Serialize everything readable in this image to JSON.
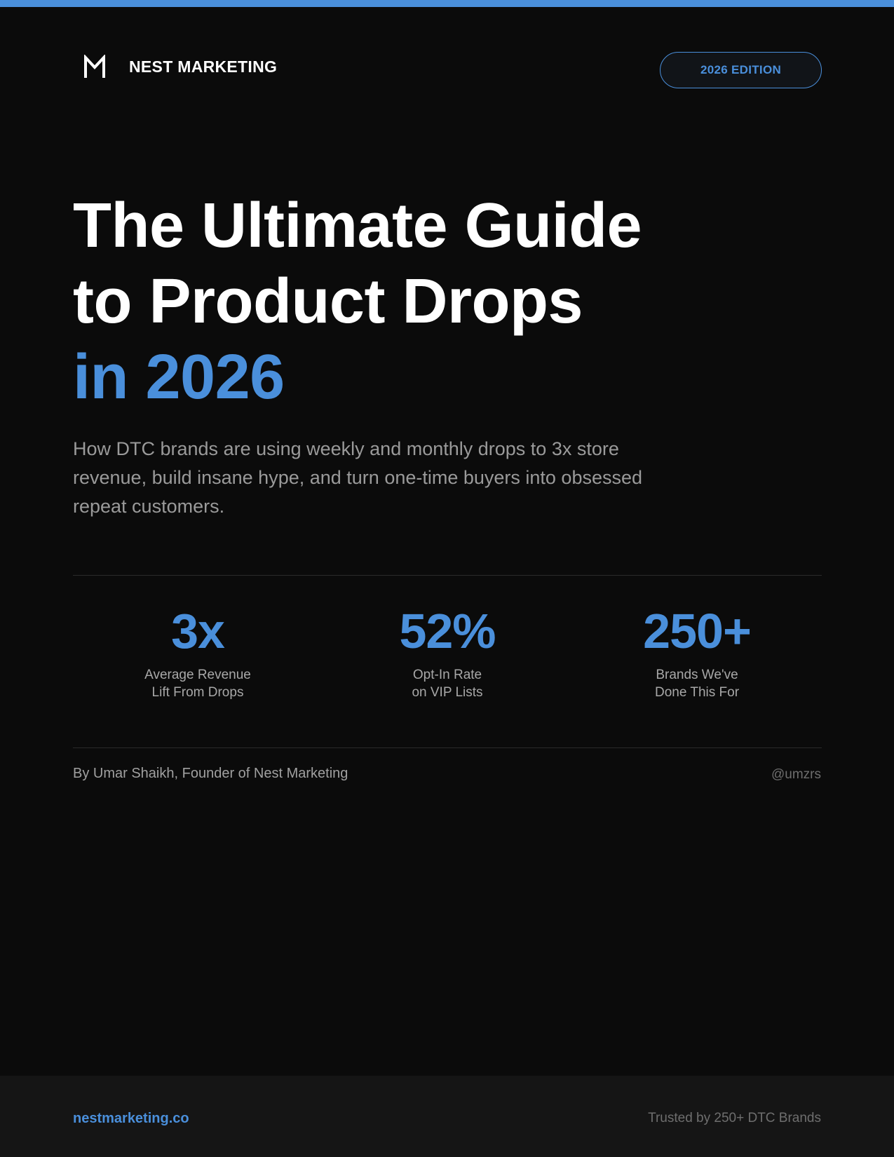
{
  "theme": {
    "accent": "#4a8fdb",
    "background": "#0b0b0b",
    "footer_background": "#151515"
  },
  "header": {
    "logo_icon": "m-logo-icon",
    "brand_name": "NEST MARKETING",
    "edition": "2026 EDITION"
  },
  "hero": {
    "title_line1": "The Ultimate Guide",
    "title_line2": "to Product Drops",
    "title_line3": "in 2026",
    "subtitle": "How DTC brands are using weekly and monthly drops to 3x store revenue, build insane hype, and turn one-time buyers into obsessed repeat customers."
  },
  "stats": [
    {
      "value": "3x",
      "label_line1": "Average Revenue",
      "label_line2": "Lift From Drops"
    },
    {
      "value": "52%",
      "label_line1": "Opt-In Rate",
      "label_line2": "on VIP Lists"
    },
    {
      "value": "250+",
      "label_line1": "Brands We've",
      "label_line2": "Done This For"
    }
  ],
  "author": {
    "byline": "By Umar Shaikh, Founder of Nest Marketing",
    "handle": "@umzrs"
  },
  "footer": {
    "website": "nestmarketing.co",
    "trust": "Trusted by 250+ DTC Brands"
  }
}
